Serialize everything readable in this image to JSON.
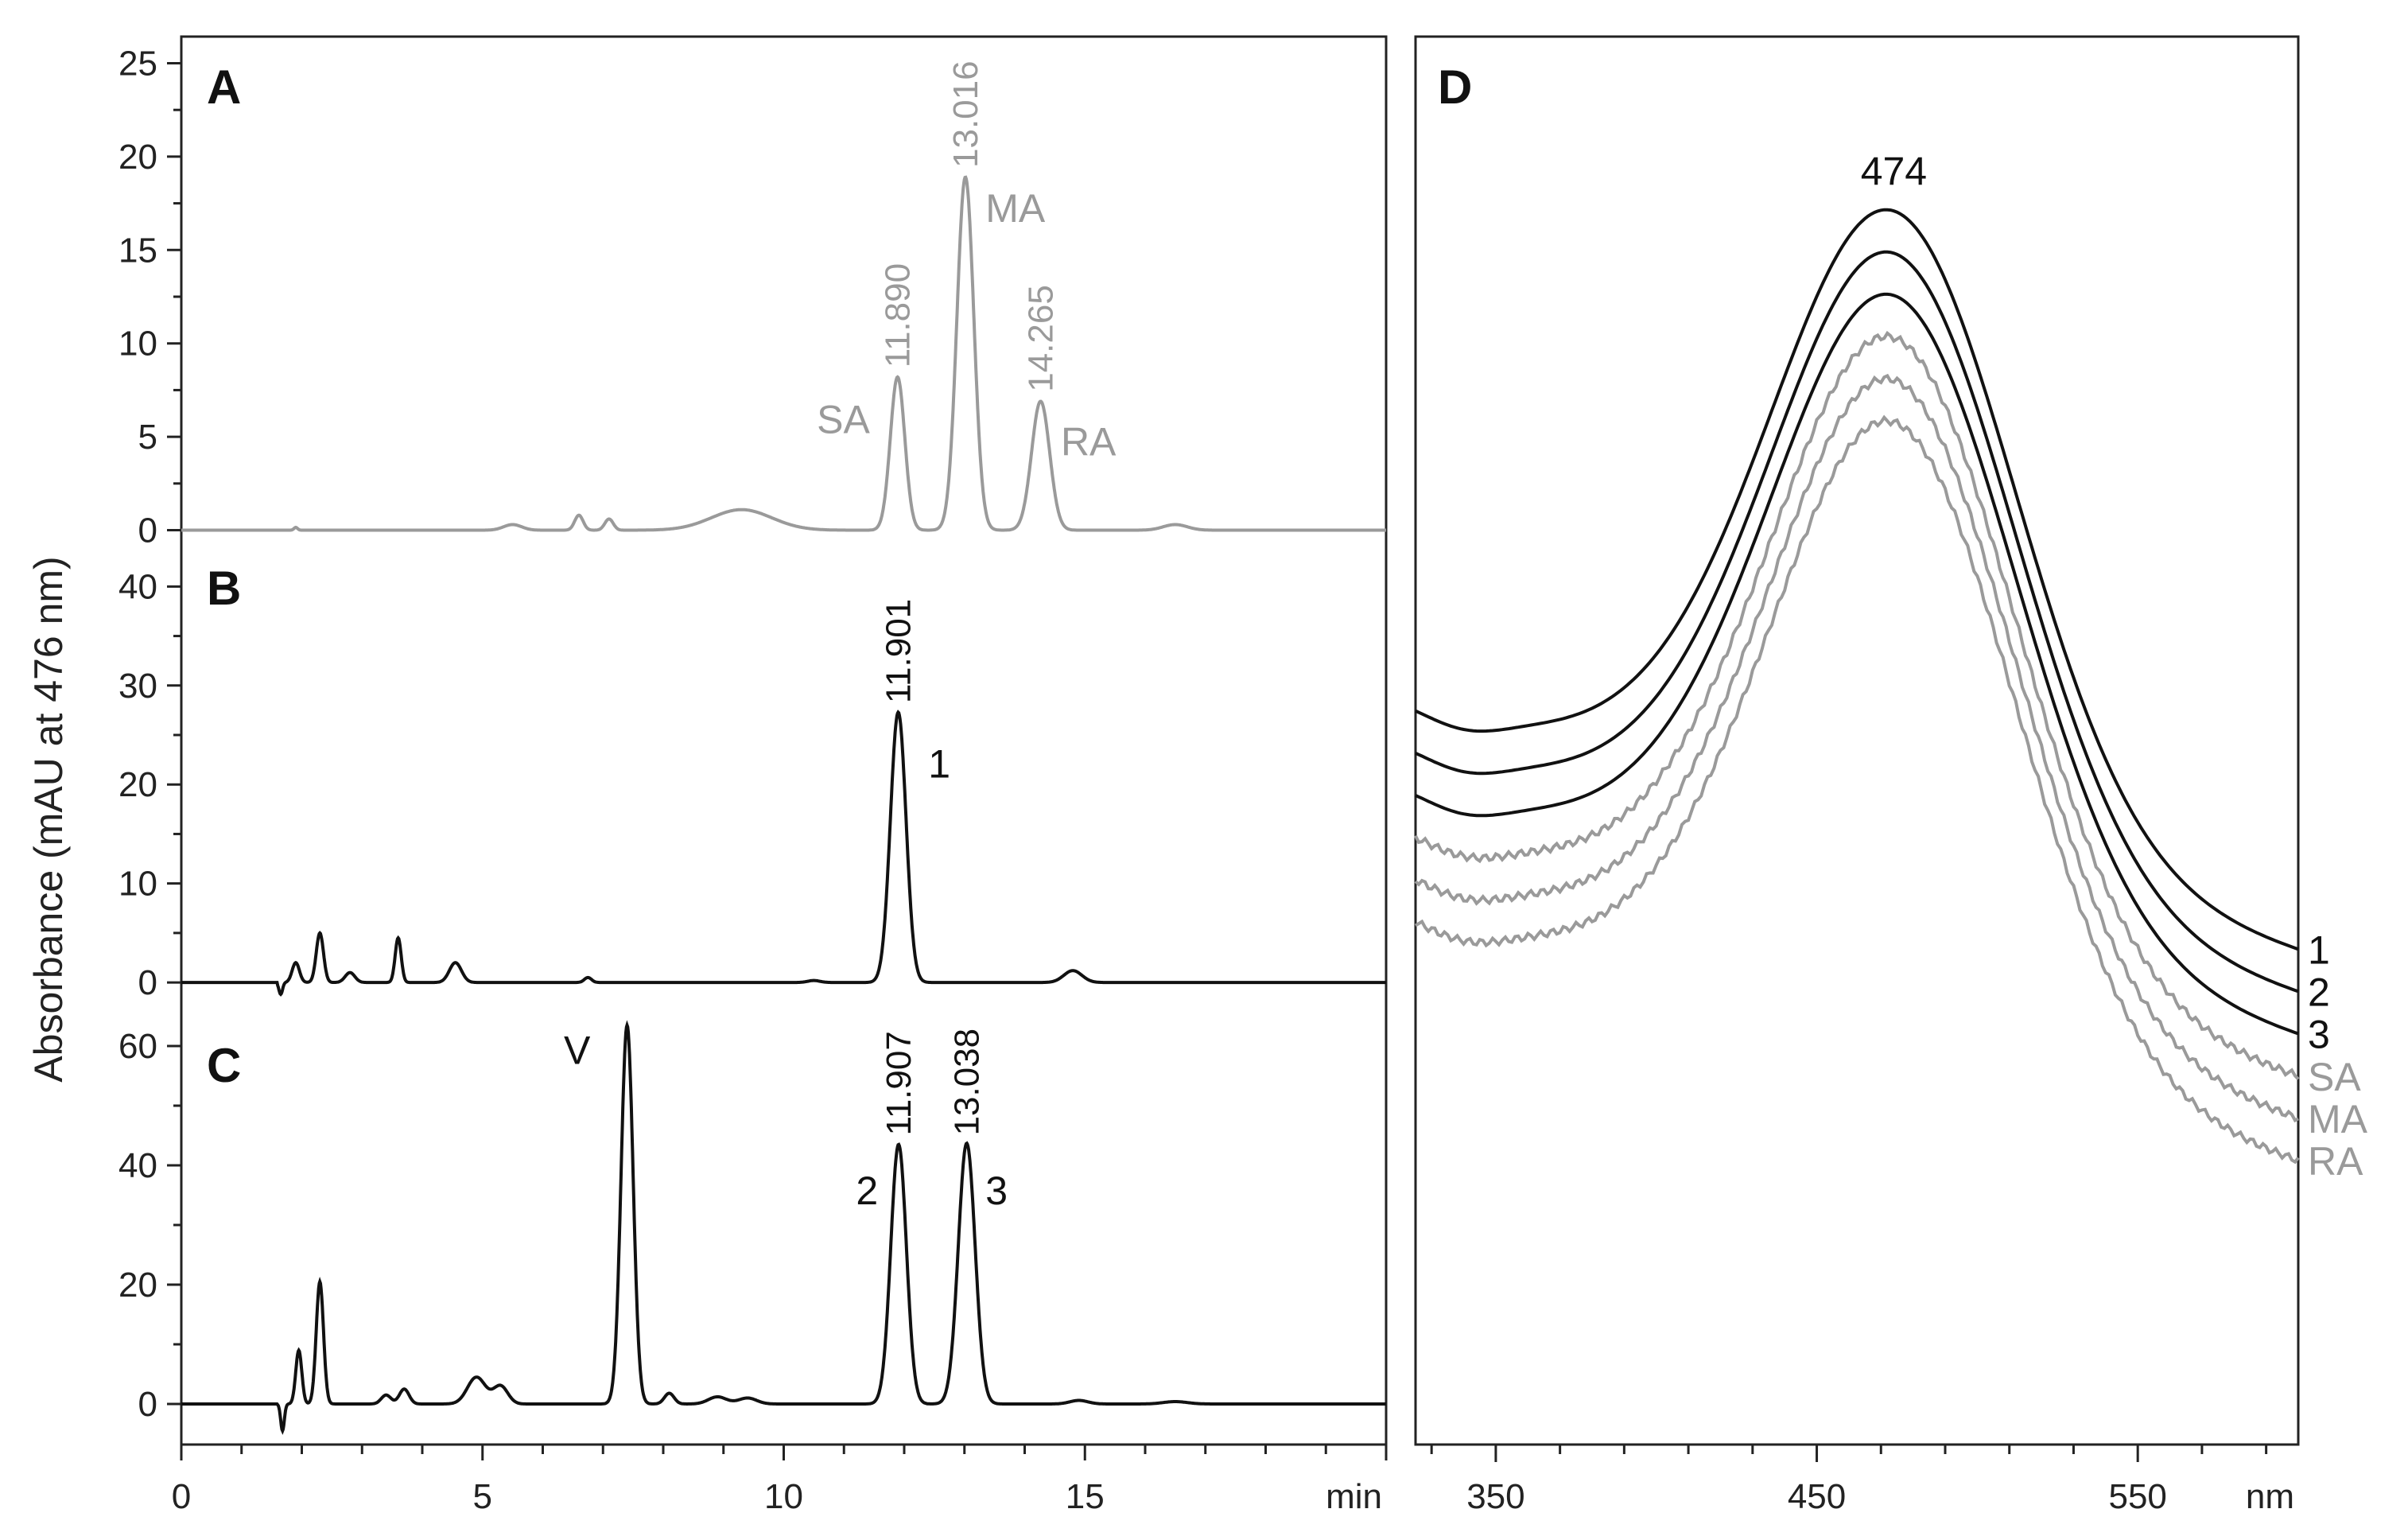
{
  "colors": {
    "black": "#111111",
    "gray": "#9a9a9a"
  },
  "ylabel": "Absorbance (mAU at 476 nm)",
  "chart_data": [
    {
      "type": "line",
      "panel": "A",
      "color": "gray",
      "xlim": [
        0,
        20
      ],
      "ylim": [
        -1,
        26
      ],
      "yticks": [
        0,
        5,
        10,
        15,
        20,
        25
      ],
      "peaks": [
        {
          "t": 1.9,
          "h": 0.15,
          "w": 0.03
        },
        {
          "t": 5.5,
          "h": 0.3,
          "w": 0.15
        },
        {
          "t": 6.6,
          "h": 0.8,
          "w": 0.07
        },
        {
          "t": 7.1,
          "h": 0.6,
          "w": 0.07
        },
        {
          "t": 9.3,
          "h": 1.1,
          "w": 0.5
        },
        {
          "t": 11.89,
          "h": 8.2,
          "w": 0.12
        },
        {
          "t": 13.016,
          "h": 18.9,
          "w": 0.14
        },
        {
          "t": 14.265,
          "h": 6.9,
          "w": 0.15
        },
        {
          "t": 16.5,
          "h": 0.3,
          "w": 0.2
        }
      ],
      "annotations": [
        {
          "text": "11.890",
          "x": 11.89,
          "y": 8.7,
          "kind": "rt"
        },
        {
          "text": "13.016",
          "x": 13.016,
          "y": 19.4,
          "kind": "rt"
        },
        {
          "text": "14.265",
          "x": 14.265,
          "y": 7.4,
          "kind": "rt"
        },
        {
          "text": "SA",
          "x": 10.55,
          "y": 5.2,
          "kind": "peak"
        },
        {
          "text": "MA",
          "x": 13.35,
          "y": 16.5,
          "kind": "peak"
        },
        {
          "text": "RA",
          "x": 14.6,
          "y": 4.0,
          "kind": "peak"
        }
      ]
    },
    {
      "type": "line",
      "panel": "B",
      "color": "black",
      "xlim": [
        0,
        20
      ],
      "ylim": [
        -2,
        43
      ],
      "yticks": [
        0,
        10,
        20,
        30,
        40
      ],
      "peaks": [
        {
          "t": 1.65,
          "h": -1.2,
          "w": 0.03
        },
        {
          "t": 1.9,
          "h": 2.0,
          "w": 0.06
        },
        {
          "t": 2.3,
          "h": 5.0,
          "w": 0.06
        },
        {
          "t": 2.8,
          "h": 1.0,
          "w": 0.08
        },
        {
          "t": 3.6,
          "h": 4.5,
          "w": 0.05
        },
        {
          "t": 4.55,
          "h": 2.0,
          "w": 0.1
        },
        {
          "t": 6.75,
          "h": 0.5,
          "w": 0.06
        },
        {
          "t": 10.5,
          "h": 0.2,
          "w": 0.1
        },
        {
          "t": 11.901,
          "h": 27.3,
          "w": 0.13
        },
        {
          "t": 14.8,
          "h": 1.2,
          "w": 0.15
        }
      ],
      "annotations": [
        {
          "text": "11.901",
          "x": 11.901,
          "y": 28.2,
          "kind": "rt"
        },
        {
          "text": "1",
          "x": 12.4,
          "y": 20.7,
          "kind": "peak"
        }
      ]
    },
    {
      "type": "line",
      "panel": "C",
      "color": "black",
      "xlim": [
        0,
        20
      ],
      "ylim": [
        -6,
        66
      ],
      "yticks": [
        0,
        20,
        40,
        60
      ],
      "peaks": [
        {
          "t": 1.68,
          "h": -4.5,
          "w": 0.03
        },
        {
          "t": 1.95,
          "h": 9.0,
          "w": 0.05
        },
        {
          "t": 2.3,
          "h": 20.5,
          "w": 0.06
        },
        {
          "t": 3.4,
          "h": 1.5,
          "w": 0.08
        },
        {
          "t": 3.7,
          "h": 2.5,
          "w": 0.08
        },
        {
          "t": 4.9,
          "h": 4.5,
          "w": 0.15
        },
        {
          "t": 5.3,
          "h": 3.0,
          "w": 0.12
        },
        {
          "t": 7.4,
          "h": 63.5,
          "w": 0.1
        },
        {
          "t": 8.1,
          "h": 1.8,
          "w": 0.08
        },
        {
          "t": 8.9,
          "h": 1.2,
          "w": 0.15
        },
        {
          "t": 9.4,
          "h": 1.0,
          "w": 0.15
        },
        {
          "t": 11.907,
          "h": 43.5,
          "w": 0.13
        },
        {
          "t": 13.038,
          "h": 43.7,
          "w": 0.14
        },
        {
          "t": 14.9,
          "h": 0.6,
          "w": 0.15
        },
        {
          "t": 16.5,
          "h": 0.4,
          "w": 0.2
        }
      ],
      "annotations": [
        {
          "text": "11.907",
          "x": 11.907,
          "y": 45.0,
          "kind": "rt"
        },
        {
          "text": "13.038",
          "x": 13.038,
          "y": 45.0,
          "kind": "rt"
        },
        {
          "text": "V",
          "x": 6.35,
          "y": 57.0,
          "kind": "peak"
        },
        {
          "text": "2",
          "x": 11.2,
          "y": 33.5,
          "kind": "peak"
        },
        {
          "text": "3",
          "x": 13.35,
          "y": 33.5,
          "kind": "peak"
        }
      ]
    },
    {
      "type": "line",
      "panel": "D",
      "xlim": [
        325,
        600
      ],
      "ylim": [
        0,
        100
      ],
      "xticks": [
        350,
        450,
        550
      ],
      "xunit": "nm",
      "max_label": "474",
      "peak_nm": 474,
      "series": [
        {
          "name": "1",
          "color": "black",
          "base_left": 52.5,
          "base_right": 35.0,
          "peak_y": 87.5
        },
        {
          "name": "2",
          "color": "black",
          "base_left": 49.5,
          "base_right": 32.0,
          "peak_y": 84.5
        },
        {
          "name": "3",
          "color": "black",
          "base_left": 46.5,
          "base_right": 29.0,
          "peak_y": 81.5
        },
        {
          "name": "SA",
          "color": "gray",
          "base_left": 43.5,
          "base_right": 26.0,
          "peak_y": 78.5
        },
        {
          "name": "MA",
          "color": "gray",
          "base_left": 40.5,
          "base_right": 23.0,
          "peak_y": 75.5
        },
        {
          "name": "RA",
          "color": "gray",
          "base_left": 37.5,
          "base_right": 20.0,
          "peak_y": 72.5
        }
      ]
    }
  ],
  "x_axis_left": {
    "ticks": [
      0,
      5,
      10,
      15
    ],
    "unit": "min"
  }
}
